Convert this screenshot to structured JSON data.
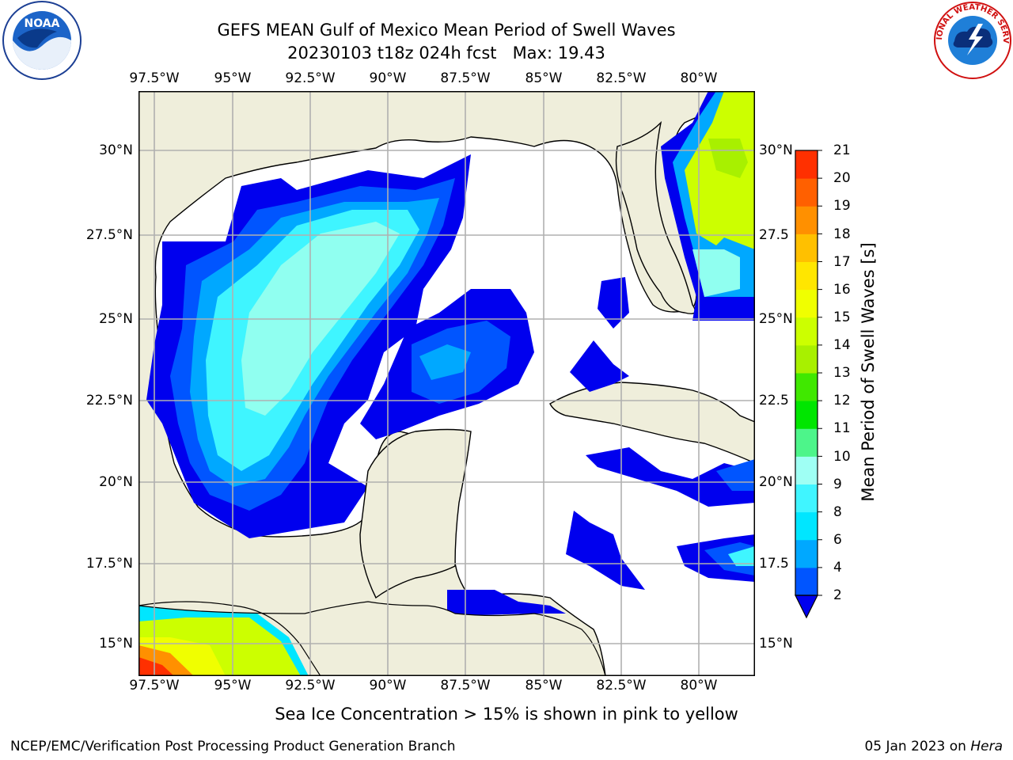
{
  "header": {
    "title": "GEFS MEAN Gulf of Mexico Mean Period of Swell Waves",
    "subtitle": "20230103 t18z 024h fcst   Max: 19.43"
  },
  "logos": {
    "noaa": "NOAA",
    "nws": "NATIONAL WEATHER SERVICE"
  },
  "map": {
    "lon_labels": [
      "97.5°W",
      "95°W",
      "92.5°W",
      "90°W",
      "87.5°W",
      "85°W",
      "82.5°W",
      "80°W"
    ],
    "lat_labels_left": [
      "30°N",
      "27.5°N",
      "25°N",
      "22.5°N",
      "20°N",
      "17.5°N",
      "15°N"
    ],
    "lat_labels_right": [
      "30°N",
      "27.5",
      "25°N",
      "22.5",
      "20°N",
      "17.5",
      "15°N"
    ],
    "lon_range": [
      -98.0,
      -78.3
    ],
    "lat_range": [
      14.0,
      31.7
    ],
    "land_color": "#efeedb",
    "ocean_color": "#ffffff",
    "grid": true
  },
  "colorbar": {
    "label": "Mean Period of Swell Waves [s]",
    "ticks": [
      "2",
      "4",
      "6",
      "8",
      "9",
      "10",
      "11",
      "12",
      "13",
      "14",
      "15",
      "16",
      "17",
      "18",
      "19",
      "20",
      "21"
    ],
    "colors": [
      "#0055ff",
      "#00a8ff",
      "#00e6ff",
      "#40f5ff",
      "#9ffff4",
      "#4df58a",
      "#00e600",
      "#40e800",
      "#a8f000",
      "#ccff00",
      "#f0ff00",
      "#ffe600",
      "#ffc000",
      "#ff9000",
      "#ff6000",
      "#ff3000"
    ],
    "under_color": "#0000ee"
  },
  "note": "Sea Ice Concentration > 15% is shown in pink to yellow",
  "footer": {
    "left": "NCEP/EMC/Verification Post Processing Product Generation Branch",
    "date": "05 Jan 2023 on ",
    "machine": "Hera"
  }
}
